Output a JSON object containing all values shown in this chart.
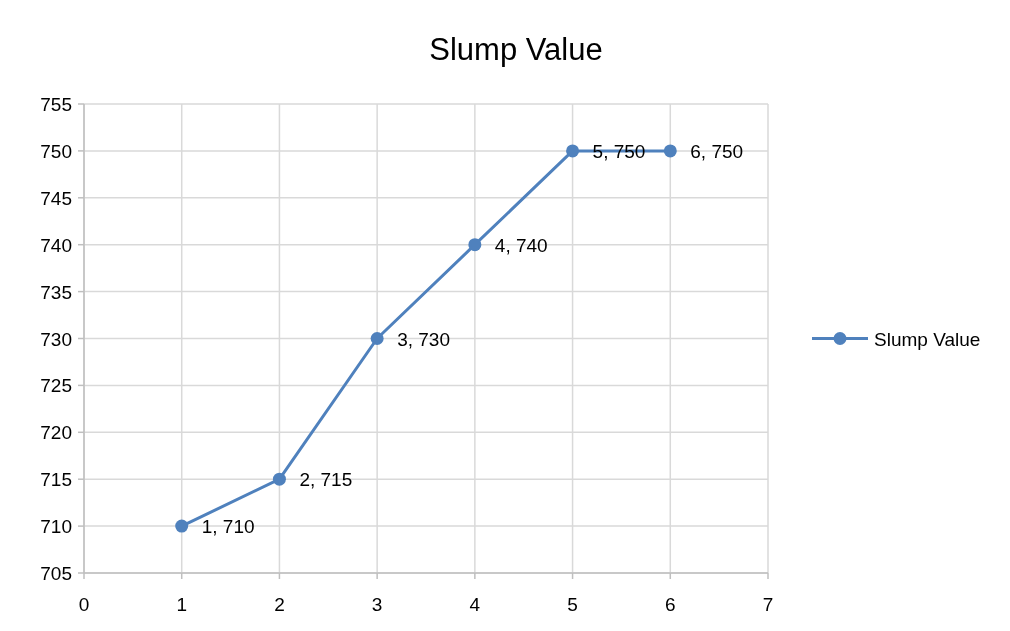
{
  "chart_data": {
    "type": "scatter",
    "title": "Slump Value",
    "x": [
      1,
      2,
      3,
      4,
      5,
      6
    ],
    "series": [
      {
        "name": "Slump Value",
        "color": "#4f81bd",
        "values": [
          710,
          715,
          730,
          740,
          750,
          750
        ],
        "value_labels": [
          "1, 710",
          "2, 715",
          "3, 730",
          "4, 740",
          "5, 750",
          "6, 750"
        ]
      }
    ],
    "xlim": [
      0,
      7
    ],
    "xticks": [
      0,
      1,
      2,
      3,
      4,
      5,
      6,
      7
    ],
    "ylim": [
      705,
      755
    ],
    "yticks": [
      705,
      710,
      715,
      720,
      725,
      730,
      735,
      740,
      745,
      750,
      755
    ],
    "grid": true,
    "legend": "right",
    "marker": "circle",
    "line_style": "solid"
  }
}
